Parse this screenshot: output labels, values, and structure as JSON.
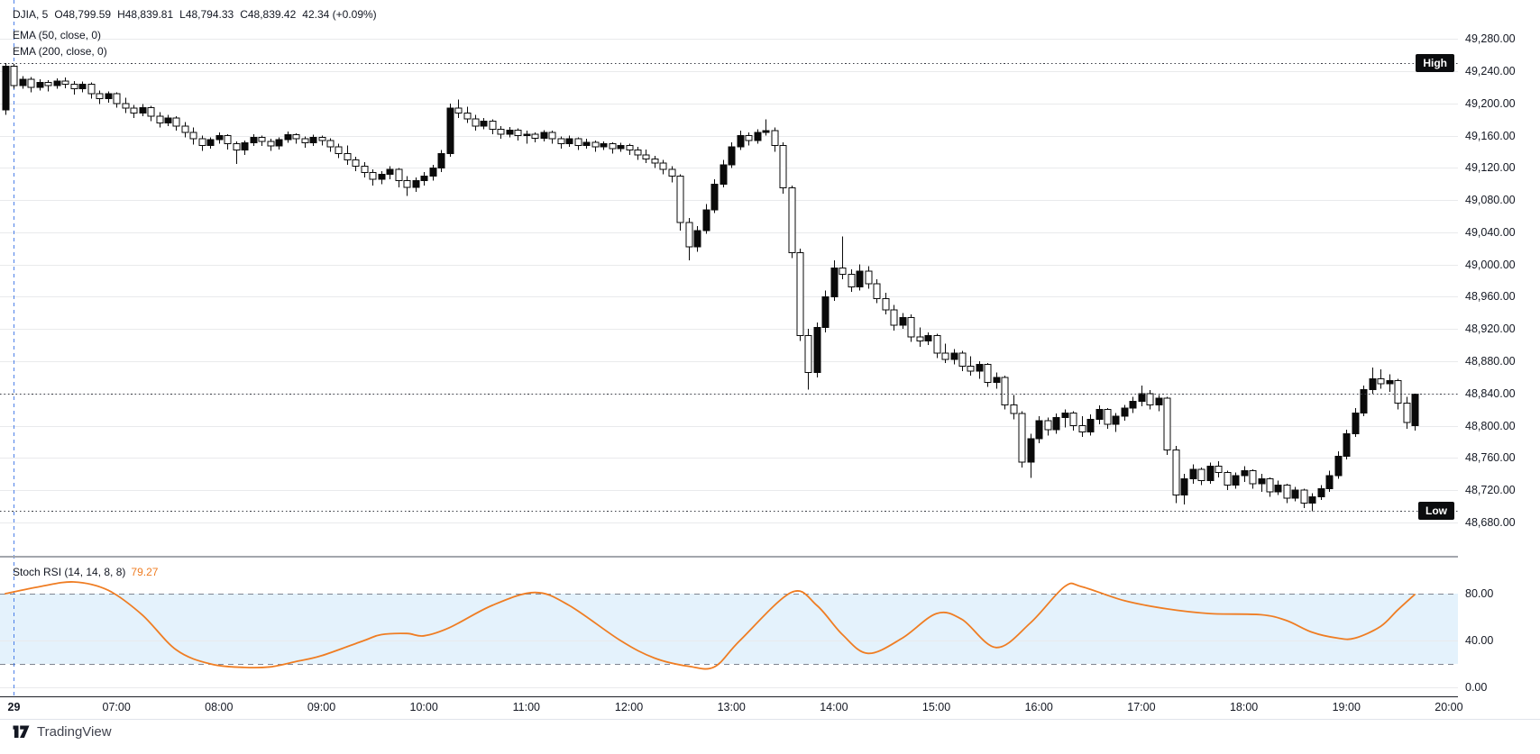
{
  "legend": {
    "symbol": "DJIA, 5",
    "open": "O48,799.59",
    "high": "H48,839.81",
    "low": "L48,794.33",
    "close": "C48,839.42",
    "change": "42.34 (+0.09%)",
    "ema50_label": "EMA (50, close, 0)",
    "ema200_label": "EMA (200, close, 0)"
  },
  "rsi_legend": {
    "title": "Stoch RSI (14, 14, 8, 8)",
    "value": "79.27"
  },
  "badges": {
    "high": "High",
    "low": "Low"
  },
  "footer": {
    "brand": "TradingView"
  },
  "colors": {
    "candle_up": "#0a0a0a",
    "candle_down_fill": "#ffffff",
    "candle_border": "#0a0a0a",
    "grid": "#e9eaec",
    "dotted_line": "#3a3d45",
    "rsi_line": "#ef7d23",
    "band_fill": "#e4f2fc",
    "band_dash": "#808591",
    "day_separator": "#2e6be5",
    "panel_separator": "#a3a6ad",
    "axis_border": "#1c1f26",
    "footer_line": "#e0e3eb"
  },
  "chart_data": {
    "type": "candlestick",
    "symbol": "DJIA",
    "interval_minutes": 5,
    "session_start": "05:55",
    "price_ylim": [
      49328.4,
      48638.5
    ],
    "price_ticks": [
      {
        "label": "49,280.00",
        "price": 49280
      },
      {
        "label": "49,240.00",
        "price": 49240
      },
      {
        "label": "49,200.00",
        "price": 49200
      },
      {
        "label": "49,160.00",
        "price": 49160
      },
      {
        "label": "49,120.00",
        "price": 49120
      },
      {
        "label": "49,080.00",
        "price": 49080
      },
      {
        "label": "49,040.00",
        "price": 49040
      },
      {
        "label": "49,000.00",
        "price": 49000
      },
      {
        "label": "48,960.00",
        "price": 48960
      },
      {
        "label": "48,920.00",
        "price": 48920
      },
      {
        "label": "48,880.00",
        "price": 48880
      },
      {
        "label": "48,840.00",
        "price": 48840
      },
      {
        "label": "48,800.00",
        "price": 48800
      },
      {
        "label": "48,760.00",
        "price": 48760
      },
      {
        "label": "48,720.00",
        "price": 48720
      },
      {
        "label": "48,680.00",
        "price": 48680
      }
    ],
    "time_ticks": [
      {
        "t": "06:00",
        "label": "29",
        "bold": true
      },
      {
        "t": "07:00",
        "label": "07:00"
      },
      {
        "t": "08:00",
        "label": "08:00"
      },
      {
        "t": "09:00",
        "label": "09:00"
      },
      {
        "t": "10:00",
        "label": "10:00"
      },
      {
        "t": "11:00",
        "label": "11:00"
      },
      {
        "t": "12:00",
        "label": "12:00"
      },
      {
        "t": "13:00",
        "label": "13:00"
      },
      {
        "t": "14:00",
        "label": "14:00"
      },
      {
        "t": "15:00",
        "label": "15:00"
      },
      {
        "t": "16:00",
        "label": "16:00"
      },
      {
        "t": "17:00",
        "label": "17:00"
      },
      {
        "t": "18:00",
        "label": "18:00"
      },
      {
        "t": "19:00",
        "label": "19:00"
      },
      {
        "t": "20:00",
        "label": "20:00"
      }
    ],
    "day_separator_time": "06:00",
    "session_high": {
      "label": "High",
      "price": 49250
    },
    "session_low": {
      "label": "Low",
      "price": 48694
    },
    "last_price": 48839.42,
    "candles": [
      [
        49192,
        49250,
        49186,
        49246
      ],
      [
        49246,
        49249,
        49218,
        49222
      ],
      [
        49222,
        49234,
        49218,
        49230
      ],
      [
        49230,
        49233,
        49214,
        49220
      ],
      [
        49220,
        49230,
        49216,
        49226
      ],
      [
        49226,
        49229,
        49215,
        49222
      ],
      [
        49222,
        49231,
        49218,
        49228
      ],
      [
        49228,
        49232,
        49219,
        49224
      ],
      [
        49224,
        49228,
        49211,
        49218
      ],
      [
        49218,
        49227,
        49214,
        49224
      ],
      [
        49224,
        49226,
        49206,
        49212
      ],
      [
        49212,
        49216,
        49199,
        49206
      ],
      [
        49206,
        49215,
        49201,
        49212
      ],
      [
        49212,
        49214,
        49195,
        49200
      ],
      [
        49200,
        49207,
        49188,
        49194
      ],
      [
        49194,
        49198,
        49182,
        49188
      ],
      [
        49188,
        49199,
        49184,
        49195
      ],
      [
        49195,
        49197,
        49178,
        49184
      ],
      [
        49184,
        49189,
        49170,
        49176
      ],
      [
        49176,
        49186,
        49172,
        49182
      ],
      [
        49182,
        49184,
        49166,
        49172
      ],
      [
        49172,
        49177,
        49158,
        49164
      ],
      [
        49164,
        49170,
        49149,
        49156
      ],
      [
        49156,
        49160,
        49141,
        49148
      ],
      [
        49148,
        49158,
        49144,
        49155
      ],
      [
        49155,
        49164,
        49150,
        49160
      ],
      [
        49160,
        49162,
        49143,
        49150
      ],
      [
        49150,
        49153,
        49125,
        49142
      ],
      [
        49142,
        49154,
        49136,
        49151
      ],
      [
        49151,
        49162,
        49147,
        49158
      ],
      [
        49158,
        49160,
        49147,
        49153
      ],
      [
        49153,
        49156,
        49141,
        49147
      ],
      [
        49147,
        49158,
        49143,
        49155
      ],
      [
        49155,
        49165,
        49151,
        49161
      ],
      [
        49161,
        49163,
        49150,
        49156
      ],
      [
        49156,
        49159,
        49145,
        49151
      ],
      [
        49151,
        49161,
        49147,
        49158
      ],
      [
        49158,
        49160,
        49148,
        49154
      ],
      [
        49154,
        49157,
        49140,
        49146
      ],
      [
        49146,
        49150,
        49132,
        49138
      ],
      [
        49138,
        49148,
        49124,
        49130
      ],
      [
        49130,
        49134,
        49116,
        49122
      ],
      [
        49122,
        49127,
        49108,
        49114
      ],
      [
        49114,
        49118,
        49098,
        49106
      ],
      [
        49106,
        49116,
        49100,
        49112
      ],
      [
        49112,
        49122,
        49106,
        49118
      ],
      [
        49118,
        49120,
        49096,
        49104
      ],
      [
        49104,
        49110,
        49085,
        49096
      ],
      [
        49096,
        49108,
        49090,
        49104
      ],
      [
        49104,
        49115,
        49098,
        49110
      ],
      [
        49110,
        49124,
        49104,
        49120
      ],
      [
        49120,
        49142,
        49115,
        49138
      ],
      [
        49138,
        49200,
        49134,
        49194
      ],
      [
        49194,
        49205,
        49182,
        49188
      ],
      [
        49188,
        49196,
        49176,
        49181
      ],
      [
        49181,
        49186,
        49166,
        49172
      ],
      [
        49172,
        49182,
        49168,
        49178
      ],
      [
        49178,
        49180,
        49162,
        49168
      ],
      [
        49168,
        49172,
        49156,
        49162
      ],
      [
        49162,
        49171,
        49158,
        49167
      ],
      [
        49167,
        49169,
        49154,
        49160
      ],
      [
        49160,
        49166,
        49150,
        49162
      ],
      [
        49162,
        49164,
        49152,
        49157
      ],
      [
        49157,
        49167,
        49153,
        49164
      ],
      [
        49164,
        49166,
        49150,
        49156
      ],
      [
        49156,
        49159,
        49144,
        49150
      ],
      [
        49150,
        49160,
        49146,
        49156
      ],
      [
        49156,
        49158,
        49142,
        49148
      ],
      [
        49148,
        49156,
        49144,
        49152
      ],
      [
        49152,
        49154,
        49140,
        49146
      ],
      [
        49146,
        49153,
        49142,
        49150
      ],
      [
        49150,
        49152,
        49138,
        49144
      ],
      [
        49144,
        49151,
        49140,
        49148
      ],
      [
        49148,
        49150,
        49136,
        49142
      ],
      [
        49142,
        49146,
        49130,
        49136
      ],
      [
        49136,
        49143,
        49126,
        49131
      ],
      [
        49131,
        49135,
        49120,
        49126
      ],
      [
        49126,
        49130,
        49112,
        49118
      ],
      [
        49118,
        49122,
        49102,
        49110
      ],
      [
        49110,
        49112,
        49042,
        49052
      ],
      [
        49052,
        49058,
        49005,
        49022
      ],
      [
        49022,
        49048,
        49016,
        49042
      ],
      [
        49042,
        49075,
        49038,
        49068
      ],
      [
        49068,
        49106,
        49064,
        49100
      ],
      [
        49100,
        49130,
        49096,
        49124
      ],
      [
        49124,
        49152,
        49120,
        49146
      ],
      [
        49146,
        49166,
        49142,
        49160
      ],
      [
        49160,
        49164,
        49148,
        49154
      ],
      [
        49154,
        49168,
        49150,
        49164
      ],
      [
        49164,
        49180,
        49160,
        49166
      ],
      [
        49166,
        49170,
        49140,
        49148
      ],
      [
        49148,
        49152,
        49088,
        49095
      ],
      [
        49095,
        49098,
        49008,
        49015
      ],
      [
        49015,
        49020,
        48905,
        48912
      ],
      [
        48912,
        48920,
        48845,
        48866
      ],
      [
        48866,
        48928,
        48860,
        48922
      ],
      [
        48922,
        48968,
        48916,
        48960
      ],
      [
        48960,
        49005,
        48955,
        48996
      ],
      [
        48996,
        49035,
        48982,
        48988
      ],
      [
        48988,
        48994,
        48966,
        48972
      ],
      [
        48972,
        49000,
        48968,
        48992
      ],
      [
        48992,
        48998,
        48970,
        48976
      ],
      [
        48976,
        48982,
        48952,
        48958
      ],
      [
        48958,
        48965,
        48938,
        48944
      ],
      [
        48944,
        48950,
        48918,
        48925
      ],
      [
        48925,
        48940,
        48920,
        48934
      ],
      [
        48934,
        48938,
        48904,
        48910
      ],
      [
        48910,
        48922,
        48898,
        48905
      ],
      [
        48905,
        48916,
        48900,
        48912
      ],
      [
        48912,
        48914,
        48884,
        48890
      ],
      [
        48890,
        48902,
        48878,
        48882
      ],
      [
        48882,
        48895,
        48876,
        48890
      ],
      [
        48890,
        48893,
        48868,
        48874
      ],
      [
        48874,
        48886,
        48862,
        48868
      ],
      [
        48868,
        48880,
        48858,
        48876
      ],
      [
        48876,
        48878,
        48848,
        48854
      ],
      [
        48854,
        48866,
        48846,
        48860
      ],
      [
        48860,
        48862,
        48820,
        48826
      ],
      [
        48826,
        48838,
        48808,
        48815
      ],
      [
        48815,
        48818,
        48748,
        48755
      ],
      [
        48755,
        48790,
        48735,
        48784
      ],
      [
        48784,
        48812,
        48778,
        48806
      ],
      [
        48806,
        48810,
        48788,
        48795
      ],
      [
        48795,
        48815,
        48790,
        48810
      ],
      [
        48810,
        48820,
        48798,
        48816
      ],
      [
        48816,
        48818,
        48794,
        48800
      ],
      [
        48800,
        48812,
        48786,
        48792
      ],
      [
        48792,
        48814,
        48788,
        48808
      ],
      [
        48808,
        48825,
        48802,
        48820
      ],
      [
        48820,
        48822,
        48796,
        48802
      ],
      [
        48802,
        48816,
        48792,
        48812
      ],
      [
        48812,
        48826,
        48806,
        48822
      ],
      [
        48822,
        48836,
        48816,
        48830
      ],
      [
        48830,
        48850,
        48824,
        48840
      ],
      [
        48840,
        48844,
        48820,
        48826
      ],
      [
        48826,
        48838,
        48818,
        48834
      ],
      [
        48834,
        48836,
        48764,
        48770
      ],
      [
        48770,
        48775,
        48704,
        48714
      ],
      [
        48714,
        48740,
        48702,
        48734
      ],
      [
        48734,
        48752,
        48728,
        48746
      ],
      [
        48746,
        48748,
        48726,
        48732
      ],
      [
        48732,
        48754,
        48728,
        48750
      ],
      [
        48750,
        48756,
        48736,
        48742
      ],
      [
        48742,
        48744,
        48720,
        48726
      ],
      [
        48726,
        48742,
        48722,
        48738
      ],
      [
        48738,
        48750,
        48730,
        48744
      ],
      [
        48744,
        48746,
        48722,
        48728
      ],
      [
        48728,
        48740,
        48718,
        48734
      ],
      [
        48734,
        48736,
        48712,
        48718
      ],
      [
        48718,
        48732,
        48714,
        48726
      ],
      [
        48726,
        48728,
        48704,
        48710
      ],
      [
        48710,
        48724,
        48706,
        48720
      ],
      [
        48720,
        48722,
        48698,
        48704
      ],
      [
        48704,
        48716,
        48694,
        48712
      ],
      [
        48712,
        48726,
        48708,
        48722
      ],
      [
        48722,
        48744,
        48718,
        48738
      ],
      [
        48738,
        48768,
        48734,
        48762
      ],
      [
        48762,
        48795,
        48758,
        48790
      ],
      [
        48790,
        48822,
        48786,
        48816
      ],
      [
        48816,
        48850,
        48812,
        48845
      ],
      [
        48845,
        48872,
        48840,
        48858
      ],
      [
        48858,
        48870,
        48846,
        48852
      ],
      [
        48852,
        48864,
        48842,
        48856
      ],
      [
        48856,
        48858,
        48820,
        48828
      ],
      [
        48828,
        48836,
        48796,
        48804
      ],
      [
        48800,
        48840,
        48794,
        48839
      ]
    ],
    "stoch_rsi": {
      "title": "Stoch RSI (14, 14, 8, 8)",
      "value": 79.27,
      "upper_band": 80,
      "lower_band": 20,
      "ylim": [
        110.8,
        -7.7
      ],
      "ticks": [
        {
          "label": "80.00",
          "value": 80
        },
        {
          "label": "40.00",
          "value": 40
        },
        {
          "label": "0.00",
          "value": 0
        }
      ],
      "points": [
        [
          "05:55",
          80
        ],
        [
          "06:15",
          86
        ],
        [
          "06:35",
          90
        ],
        [
          "06:55",
          83
        ],
        [
          "07:15",
          62
        ],
        [
          "07:35",
          32
        ],
        [
          "07:55",
          20
        ],
        [
          "08:15",
          17
        ],
        [
          "08:30",
          17.5
        ],
        [
          "08:45",
          22
        ],
        [
          "09:00",
          27
        ],
        [
          "09:25",
          40
        ],
        [
          "09:35",
          45
        ],
        [
          "09:50",
          46
        ],
        [
          "10:00",
          44
        ],
        [
          "10:15",
          51
        ],
        [
          "10:40",
          70
        ],
        [
          "11:05",
          81
        ],
        [
          "11:25",
          70
        ],
        [
          "11:55",
          40
        ],
        [
          "12:15",
          25
        ],
        [
          "12:35",
          18
        ],
        [
          "12:50",
          17.5
        ],
        [
          "13:05",
          40
        ],
        [
          "13:35",
          81
        ],
        [
          "13:50",
          70
        ],
        [
          "14:05",
          45
        ],
        [
          "14:20",
          29
        ],
        [
          "14:40",
          42
        ],
        [
          "15:00",
          63
        ],
        [
          "15:15",
          58
        ],
        [
          "15:35",
          34
        ],
        [
          "15:55",
          55
        ],
        [
          "16:15",
          86
        ],
        [
          "16:25",
          86
        ],
        [
          "16:50",
          74
        ],
        [
          "17:15",
          67
        ],
        [
          "17:40",
          63
        ],
        [
          "18:10",
          62
        ],
        [
          "18:25",
          57
        ],
        [
          "18:40",
          47
        ],
        [
          "18:55",
          42
        ],
        [
          "19:05",
          42
        ],
        [
          "19:20",
          52
        ],
        [
          "19:30",
          66
        ],
        [
          "19:40",
          79.27
        ]
      ]
    }
  }
}
